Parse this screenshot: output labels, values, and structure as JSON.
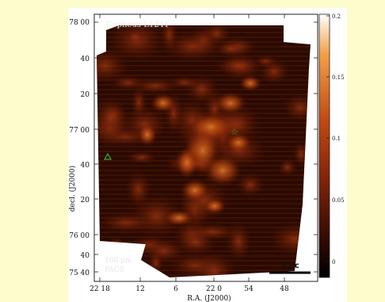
{
  "figure": {
    "title": "Cepheus-L1241",
    "wavelength_label": "160 μm",
    "instrument_label": "PACS",
    "scale_bar_label": "2 pc",
    "xlabel": "R.A. (J2000)",
    "ylabel": "decl. (J2000)",
    "xticks": [
      "22 18",
      "12",
      "6",
      "22 0",
      "54",
      "48"
    ],
    "yticks": [
      "78 00",
      "40",
      "20",
      "77 00",
      "40",
      "20",
      "76 00",
      "40",
      "75 40"
    ],
    "colorbar_ticks": [
      "0.2",
      "0.15",
      "0.1",
      "0.05",
      "0"
    ],
    "colorbar_range": [
      -0.015,
      0.2
    ],
    "colors": {
      "page_background": "#fcfccc",
      "map_dark": "#200500",
      "map_mid": "#8a2a08",
      "map_bright": "#f0a040",
      "marker": "#3da83d"
    }
  }
}
